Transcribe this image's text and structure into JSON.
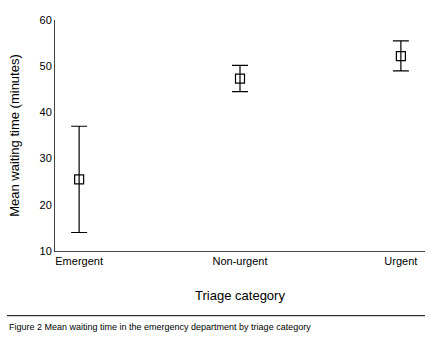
{
  "chart_data": {
    "type": "errorbar",
    "categories": [
      "Emergent",
      "Non-urgent",
      "Urgent"
    ],
    "values": [
      25.5,
      47.3,
      52.2
    ],
    "ci_upper": [
      37.0,
      50.2,
      55.5
    ],
    "ci_lower": [
      14.0,
      44.5,
      49.0
    ],
    "xlabel": "Triage category",
    "ylabel": "Mean waiting time (minutes)",
    "ylim": [
      10,
      60
    ],
    "yticks": [
      10,
      20,
      30,
      40,
      50,
      60
    ],
    "annotations": [
      "Figure 2 Mean waiting time in the emergency department by triage category"
    ],
    "color": "#000000",
    "marker": "square",
    "grid": false
  }
}
